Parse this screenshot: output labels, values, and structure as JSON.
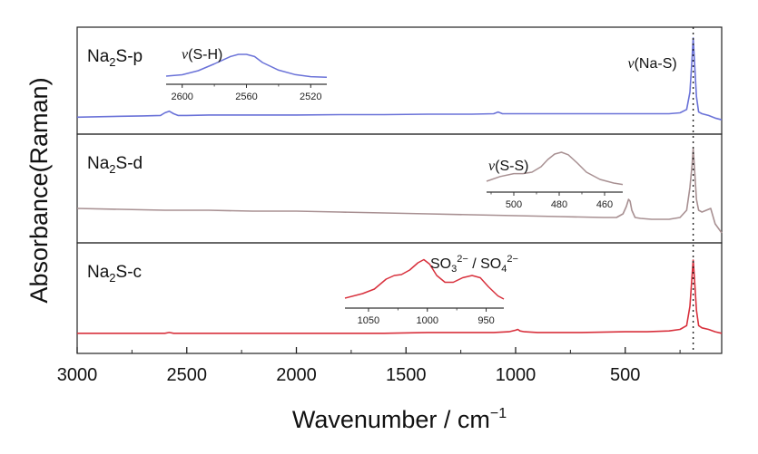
{
  "chart_data": {
    "type": "line",
    "title": "",
    "xlabel": "Wavenumber / cm",
    "xlabel_sup": "−1",
    "ylabel": "Absorbance(Raman)",
    "xlim": [
      3000,
      60
    ],
    "x_reversed": true,
    "x_ticks": [
      3000,
      2500,
      2000,
      1500,
      1000,
      500
    ],
    "marker_line": {
      "x": 190,
      "label_prefix": "ν",
      "label": "(Na-S)"
    },
    "panels": [
      {
        "name": "Na2S-p",
        "label_main": "Na",
        "label_sub": "2",
        "label_tail": "S-p",
        "color": "#6a72d8",
        "series": {
          "x": [
            3000,
            2900,
            2800,
            2700,
            2620,
            2600,
            2580,
            2560,
            2540,
            2500,
            2400,
            2200,
            2000,
            1800,
            1600,
            1400,
            1200,
            1100,
            1080,
            1060,
            1000,
            800,
            600,
            400,
            300,
            250,
            220,
            205,
            195,
            190,
            185,
            175,
            165,
            150,
            120,
            90,
            60
          ],
          "y": [
            0.06,
            0.065,
            0.07,
            0.075,
            0.08,
            0.11,
            0.13,
            0.1,
            0.08,
            0.08,
            0.085,
            0.085,
            0.085,
            0.09,
            0.09,
            0.095,
            0.095,
            0.1,
            0.12,
            0.1,
            0.1,
            0.1,
            0.1,
            0.1,
            0.1,
            0.11,
            0.15,
            0.35,
            0.75,
            0.98,
            0.75,
            0.3,
            0.12,
            0.1,
            0.08,
            0.05,
            0.03
          ],
          "ylim": [
            0,
            1
          ]
        },
        "inset": {
          "label_prefix": "ν",
          "label": "(S-H)",
          "xlim": [
            2610,
            2510
          ],
          "x_ticks": [
            2600,
            2560,
            2520
          ],
          "x": [
            2610,
            2600,
            2590,
            2580,
            2570,
            2565,
            2560,
            2555,
            2550,
            2540,
            2530,
            2520,
            2510
          ],
          "y": [
            0.1,
            0.15,
            0.3,
            0.55,
            0.82,
            0.9,
            0.9,
            0.82,
            0.6,
            0.32,
            0.16,
            0.08,
            0.06
          ]
        }
      },
      {
        "name": "Na2S-d",
        "label_main": "Na",
        "label_sub": "2",
        "label_tail": "S-d",
        "color": "#a89092",
        "series": {
          "x": [
            3000,
            2800,
            2600,
            2400,
            2200,
            2000,
            1800,
            1600,
            1400,
            1200,
            1000,
            800,
            600,
            540,
            510,
            495,
            485,
            478,
            470,
            455,
            430,
            380,
            300,
            250,
            220,
            205,
            195,
            190,
            185,
            175,
            165,
            150,
            130,
            110,
            90,
            60
          ],
          "y": [
            0.32,
            0.31,
            0.3,
            0.3,
            0.29,
            0.29,
            0.28,
            0.27,
            0.26,
            0.25,
            0.24,
            0.23,
            0.22,
            0.22,
            0.26,
            0.34,
            0.42,
            0.4,
            0.3,
            0.22,
            0.21,
            0.2,
            0.2,
            0.22,
            0.3,
            0.55,
            0.8,
            0.98,
            0.8,
            0.42,
            0.3,
            0.28,
            0.3,
            0.32,
            0.15,
            0.05
          ],
          "ylim": [
            0,
            1
          ]
        },
        "inset": {
          "label_prefix": "ν",
          "label": "(S-S)",
          "xlim": [
            512,
            452
          ],
          "x_ticks": [
            500,
            480,
            460
          ],
          "x": [
            512,
            506,
            500,
            496,
            492,
            488,
            485,
            482,
            479,
            476,
            472,
            468,
            462,
            456,
            452
          ],
          "y": [
            0.15,
            0.28,
            0.36,
            0.36,
            0.4,
            0.55,
            0.75,
            0.9,
            0.95,
            0.88,
            0.65,
            0.4,
            0.2,
            0.1,
            0.06
          ],
          "ylim": [
            0,
            1
          ]
        }
      },
      {
        "name": "Na2S-c",
        "label_main": "Na",
        "label_sub": "2",
        "label_tail": "S-c",
        "color": "#d8303c",
        "series": {
          "x": [
            3000,
            2800,
            2600,
            2580,
            2560,
            2400,
            2200,
            2000,
            1800,
            1600,
            1400,
            1200,
            1100,
            1030,
            1000,
            990,
            980,
            960,
            900,
            700,
            500,
            400,
            300,
            250,
            220,
            205,
            195,
            190,
            185,
            175,
            165,
            150,
            120,
            90,
            60
          ],
          "y": [
            0.05,
            0.05,
            0.05,
            0.06,
            0.05,
            0.05,
            0.05,
            0.05,
            0.05,
            0.05,
            0.06,
            0.06,
            0.06,
            0.07,
            0.09,
            0.1,
            0.08,
            0.07,
            0.06,
            0.06,
            0.07,
            0.07,
            0.08,
            0.1,
            0.15,
            0.4,
            0.8,
            1.0,
            0.8,
            0.35,
            0.15,
            0.12,
            0.1,
            0.07,
            0.05
          ],
          "ylim": [
            0,
            1
          ]
        },
        "inset": {
          "label": "SO",
          "label_sub1": "3",
          "label_sup1": "2−",
          "label_mid": " / SO",
          "label_sub2": "4",
          "label_sup2": "2−",
          "xlim": [
            1070,
            935
          ],
          "x_ticks": [
            1050,
            1000,
            950
          ],
          "x": [
            1070,
            1055,
            1045,
            1035,
            1028,
            1022,
            1015,
            1008,
            1003,
            998,
            992,
            985,
            978,
            970,
            962,
            955,
            948,
            940,
            935
          ],
          "y": [
            0.1,
            0.2,
            0.3,
            0.52,
            0.6,
            0.62,
            0.72,
            0.88,
            0.95,
            0.85,
            0.6,
            0.45,
            0.45,
            0.55,
            0.6,
            0.55,
            0.35,
            0.15,
            0.08
          ],
          "ylim": [
            0,
            1
          ]
        }
      }
    ]
  }
}
